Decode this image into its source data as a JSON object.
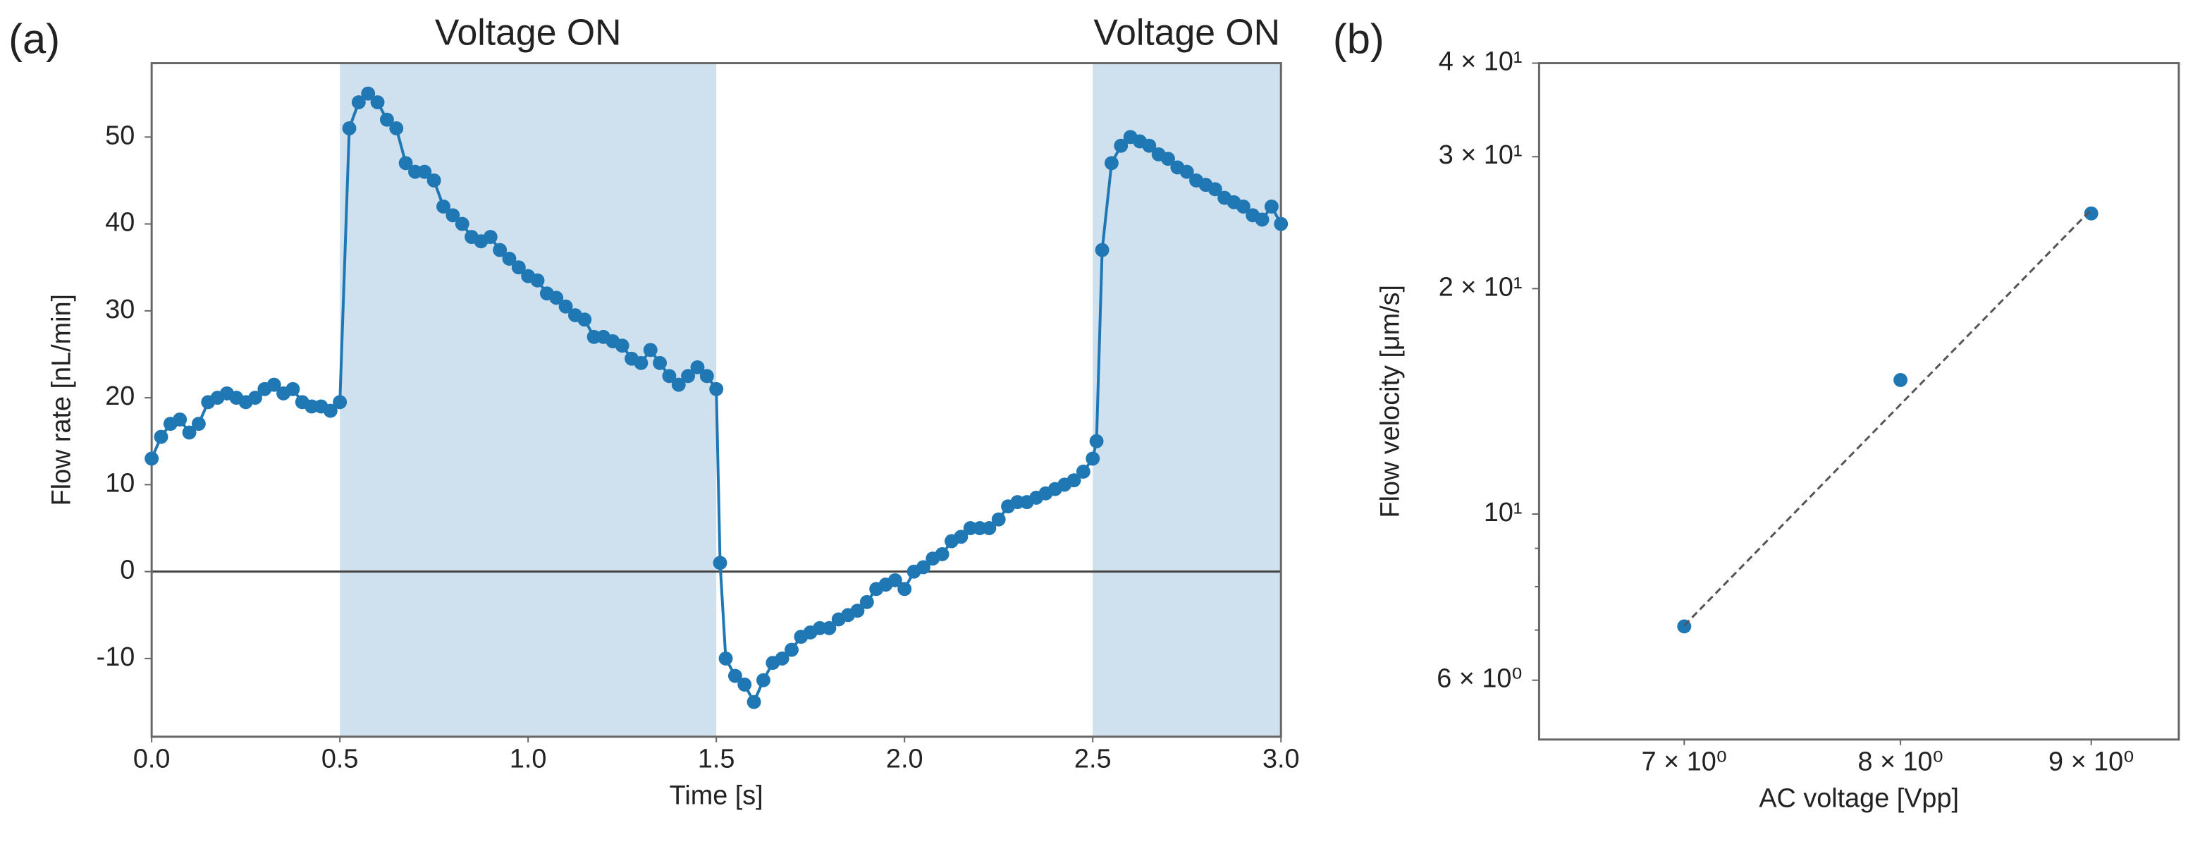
{
  "chart_data": [
    {
      "type": "line",
      "panel_label": "(a)",
      "x_label": "Time [s]",
      "y_label": "Flow rate [nL/min]",
      "xlim": [
        0,
        3
      ],
      "ylim": [
        -19,
        58.5
      ],
      "xticks": [
        {
          "value": 0,
          "label": "0.0"
        },
        0.5,
        {
          "value": 1,
          "label": "1.0"
        },
        1.5,
        {
          "value": 2,
          "label": "2.0"
        },
        2.5,
        {
          "value": 3,
          "label": "3.0"
        }
      ],
      "yticks": [
        -10,
        0,
        10,
        20,
        30,
        40,
        50
      ],
      "hlines": [
        0
      ],
      "span_color": "#cfe0ef",
      "shaded_spans": [
        {
          "xlim": [
            0.5,
            1.5
          ],
          "label": "Voltage ON"
        },
        {
          "xlim": [
            2.5,
            3
          ],
          "label": "Voltage ON"
        }
      ],
      "series": [
        {
          "color": "#1f77b4",
          "line": true,
          "marker": true,
          "x": [
            0,
            0.025,
            0.05,
            0.075,
            0.1,
            0.125,
            0.15,
            0.175,
            0.2,
            0.225,
            0.25,
            0.275,
            0.3,
            0.325,
            0.35,
            0.375,
            0.4,
            0.425,
            0.45,
            0.475,
            0.5,
            0.525,
            0.55,
            0.575,
            0.6,
            0.625,
            0.65,
            0.675,
            0.7,
            0.725,
            0.75,
            0.775,
            0.8,
            0.825,
            0.85,
            0.875,
            0.9,
            0.925,
            0.95,
            0.975,
            1,
            1.025,
            1.05,
            1.075,
            1.1,
            1.125,
            1.15,
            1.175,
            1.2,
            1.225,
            1.25,
            1.275,
            1.3,
            1.325,
            1.35,
            1.375,
            1.4,
            1.425,
            1.45,
            1.475,
            1.5,
            1.51,
            1.525,
            1.55,
            1.575,
            1.6,
            1.625,
            1.65,
            1.675,
            1.7,
            1.725,
            1.75,
            1.775,
            1.8,
            1.825,
            1.85,
            1.875,
            1.9,
            1.925,
            1.95,
            1.975,
            2,
            2.025,
            2.05,
            2.075,
            2.1,
            2.125,
            2.15,
            2.175,
            2.2,
            2.225,
            2.25,
            2.275,
            2.3,
            2.325,
            2.35,
            2.375,
            2.4,
            2.425,
            2.45,
            2.475,
            2.5,
            2.51,
            2.525,
            2.55,
            2.575,
            2.6,
            2.625,
            2.65,
            2.675,
            2.7,
            2.725,
            2.75,
            2.775,
            2.8,
            2.825,
            2.85,
            2.875,
            2.9,
            2.925,
            2.95,
            2.975,
            3
          ],
          "values": [
            13,
            15.5,
            17,
            17.5,
            16,
            17,
            19.5,
            20,
            20.5,
            20,
            19.5,
            20,
            21,
            21.5,
            20.5,
            21,
            19.5,
            19,
            19,
            18.5,
            19.5,
            51,
            54,
            55,
            54,
            52,
            51,
            47,
            46,
            46,
            45,
            42,
            41,
            40,
            38.5,
            38,
            38.5,
            37,
            36,
            35,
            34,
            33.5,
            32,
            31.5,
            30.5,
            29.5,
            29,
            27,
            27,
            26.5,
            26,
            24.5,
            24,
            25.5,
            24,
            22.5,
            21.5,
            22.5,
            23.5,
            22.5,
            21,
            1,
            -10,
            -12,
            -13,
            -15,
            -12.5,
            -10.5,
            -10,
            -9,
            -7.5,
            -7,
            -6.5,
            -6.5,
            -5.5,
            -5,
            -4.5,
            -3.5,
            -2,
            -1.5,
            -1,
            -2,
            0,
            0.5,
            1.5,
            2,
            3.5,
            4,
            5,
            5,
            5,
            6,
            7.5,
            8,
            8,
            8.5,
            9,
            9.5,
            10,
            10.5,
            11.5,
            13,
            15,
            37,
            47,
            49,
            50,
            49.5,
            49,
            48,
            47.5,
            46.5,
            46,
            45,
            44.5,
            44,
            43,
            42.5,
            42,
            41,
            40.5,
            42,
            40
          ]
        }
      ]
    },
    {
      "type": "scatter",
      "panel_label": "(b)",
      "x_label": "AC voltage [Vpp]",
      "y_label": "Flow velocity [μm/s]",
      "xscale": "log",
      "yscale": "log",
      "xlim": [
        6.4,
        9.5
      ],
      "ylim": [
        5,
        40
      ],
      "xticks": [
        {
          "value": 7,
          "label": "7 × 10⁰"
        },
        {
          "value": 8,
          "label": "8 × 10⁰"
        },
        {
          "value": 9,
          "label": "9 × 10⁰"
        }
      ],
      "yticks": [
        {
          "value": 6,
          "label": "6 × 10⁰"
        },
        {
          "value": 10,
          "label": "10¹"
        },
        {
          "value": 20,
          "label": "2 × 10¹"
        },
        {
          "value": 30,
          "label": "3 × 10¹"
        },
        {
          "value": 40,
          "label": "4 × 10¹"
        }
      ],
      "yminorticks": [
        7,
        8,
        9
      ],
      "series": [
        {
          "color": "#1f77b4",
          "marker": true,
          "x": [
            7,
            8,
            9
          ],
          "values": [
            7.08,
            15.1,
            25.2
          ]
        },
        {
          "color": "#555555",
          "line": true,
          "linestyle": "dashed",
          "x": [
            7,
            9
          ],
          "values": [
            7.1,
            25.5
          ]
        }
      ]
    }
  ]
}
